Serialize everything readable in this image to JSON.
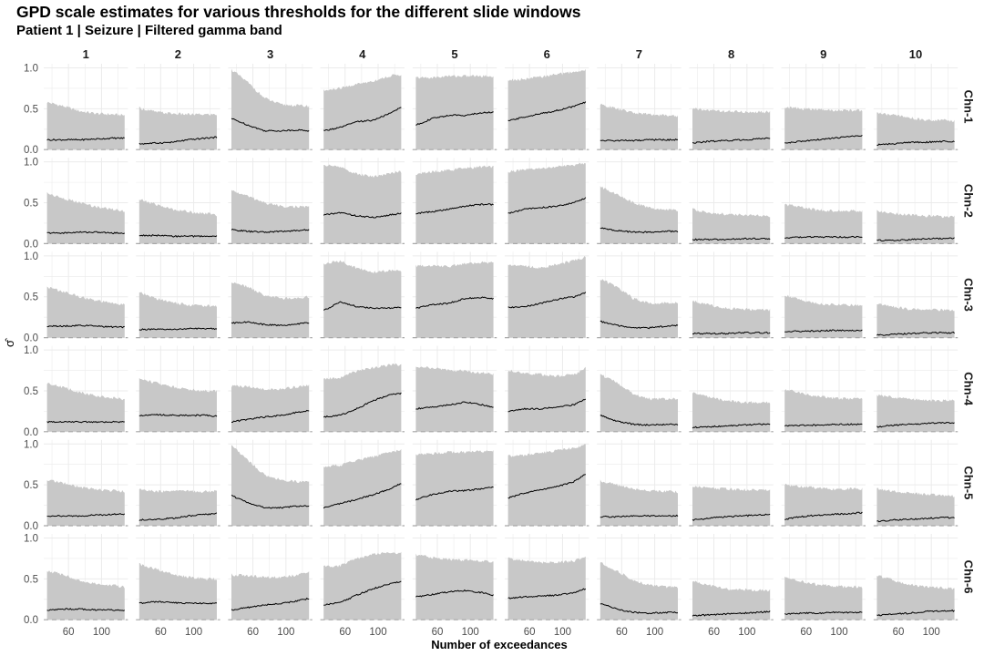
{
  "chart_data": {
    "type": "area",
    "title": "GPD scale estimates for various thresholds for the different slide windows",
    "subtitle": "Patient 1 | Seizure | Filtered gamma band",
    "xlabel": "Number of exceedances",
    "ylabel": "σ̂",
    "columns": [
      "1",
      "2",
      "3",
      "4",
      "5",
      "6",
      "7",
      "8",
      "9",
      "10"
    ],
    "rows": [
      "Chn-1",
      "Chn-2",
      "Chn-3",
      "Chn-4",
      "Chn-5",
      "Chn-6"
    ],
    "xlim": [
      30,
      132
    ],
    "ylim": [
      0,
      1.05
    ],
    "xticks": [
      60,
      100
    ],
    "yticks": [
      0.0,
      0.5,
      1.0
    ],
    "ytick_labels": [
      "0.0",
      "0.5",
      "1.0"
    ],
    "hline": 0,
    "x_points": [
      34,
      54,
      74,
      94,
      114,
      128
    ],
    "panels": [
      [
        {
          "est": [
            0.12,
            0.12,
            0.12,
            0.13,
            0.14,
            0.14
          ],
          "upper": [
            0.58,
            0.53,
            0.47,
            0.44,
            0.43,
            0.42
          ]
        },
        {
          "est": [
            0.07,
            0.08,
            0.09,
            0.12,
            0.14,
            0.15
          ],
          "upper": [
            0.51,
            0.46,
            0.44,
            0.43,
            0.43,
            0.43
          ]
        },
        {
          "est": [
            0.38,
            0.3,
            0.23,
            0.23,
            0.24,
            0.23
          ],
          "upper": [
            0.98,
            0.82,
            0.63,
            0.55,
            0.54,
            0.53
          ]
        },
        {
          "est": [
            0.23,
            0.27,
            0.34,
            0.36,
            0.44,
            0.52
          ],
          "upper": [
            0.72,
            0.75,
            0.8,
            0.84,
            0.9,
            0.92
          ]
        },
        {
          "est": [
            0.3,
            0.38,
            0.42,
            0.42,
            0.45,
            0.46
          ],
          "upper": [
            0.88,
            0.88,
            0.9,
            0.9,
            0.9,
            0.9
          ]
        },
        {
          "est": [
            0.35,
            0.4,
            0.44,
            0.48,
            0.53,
            0.58
          ],
          "upper": [
            0.85,
            0.86,
            0.89,
            0.92,
            0.95,
            0.97
          ]
        },
        {
          "est": [
            0.11,
            0.11,
            0.11,
            0.12,
            0.12,
            0.12
          ],
          "upper": [
            0.55,
            0.5,
            0.45,
            0.43,
            0.42,
            0.41
          ]
        },
        {
          "est": [
            0.08,
            0.1,
            0.11,
            0.12,
            0.13,
            0.14
          ],
          "upper": [
            0.5,
            0.48,
            0.47,
            0.46,
            0.46,
            0.46
          ]
        },
        {
          "est": [
            0.08,
            0.1,
            0.12,
            0.14,
            0.16,
            0.17
          ],
          "upper": [
            0.52,
            0.5,
            0.49,
            0.48,
            0.48,
            0.48
          ]
        },
        {
          "est": [
            0.06,
            0.07,
            0.09,
            0.09,
            0.1,
            0.1
          ],
          "upper": [
            0.45,
            0.42,
            0.39,
            0.36,
            0.36,
            0.35
          ]
        }
      ],
      [
        {
          "est": [
            0.13,
            0.13,
            0.14,
            0.14,
            0.13,
            0.13
          ],
          "upper": [
            0.62,
            0.55,
            0.5,
            0.45,
            0.42,
            0.4
          ]
        },
        {
          "est": [
            0.1,
            0.1,
            0.09,
            0.09,
            0.09,
            0.09
          ],
          "upper": [
            0.54,
            0.48,
            0.42,
            0.39,
            0.37,
            0.35
          ]
        },
        {
          "est": [
            0.17,
            0.15,
            0.14,
            0.15,
            0.16,
            0.17
          ],
          "upper": [
            0.65,
            0.58,
            0.5,
            0.46,
            0.45,
            0.45
          ]
        },
        {
          "est": [
            0.35,
            0.38,
            0.34,
            0.32,
            0.35,
            0.37
          ],
          "upper": [
            0.96,
            0.94,
            0.85,
            0.82,
            0.86,
            0.88
          ]
        },
        {
          "est": [
            0.37,
            0.39,
            0.42,
            0.46,
            0.48,
            0.48
          ],
          "upper": [
            0.85,
            0.88,
            0.9,
            0.92,
            0.94,
            0.94
          ]
        },
        {
          "est": [
            0.37,
            0.42,
            0.44,
            0.46,
            0.5,
            0.56
          ],
          "upper": [
            0.88,
            0.9,
            0.92,
            0.94,
            0.96,
            0.99
          ]
        },
        {
          "est": [
            0.19,
            0.16,
            0.14,
            0.14,
            0.15,
            0.15
          ],
          "upper": [
            0.7,
            0.6,
            0.5,
            0.44,
            0.42,
            0.4
          ]
        },
        {
          "est": [
            0.05,
            0.05,
            0.05,
            0.06,
            0.06,
            0.06
          ],
          "upper": [
            0.42,
            0.38,
            0.36,
            0.35,
            0.34,
            0.33
          ]
        },
        {
          "est": [
            0.07,
            0.08,
            0.08,
            0.08,
            0.08,
            0.08
          ],
          "upper": [
            0.48,
            0.44,
            0.41,
            0.4,
            0.4,
            0.4
          ]
        },
        {
          "est": [
            0.04,
            0.04,
            0.05,
            0.06,
            0.06,
            0.07
          ],
          "upper": [
            0.4,
            0.37,
            0.35,
            0.34,
            0.33,
            0.33
          ]
        }
      ],
      [
        {
          "est": [
            0.14,
            0.14,
            0.15,
            0.14,
            0.13,
            0.13
          ],
          "upper": [
            0.62,
            0.56,
            0.5,
            0.45,
            0.42,
            0.4
          ]
        },
        {
          "est": [
            0.1,
            0.1,
            0.1,
            0.11,
            0.11,
            0.11
          ],
          "upper": [
            0.55,
            0.48,
            0.43,
            0.4,
            0.39,
            0.38
          ]
        },
        {
          "est": [
            0.18,
            0.19,
            0.16,
            0.15,
            0.17,
            0.18
          ],
          "upper": [
            0.68,
            0.62,
            0.52,
            0.48,
            0.48,
            0.5
          ]
        },
        {
          "est": [
            0.33,
            0.44,
            0.38,
            0.36,
            0.36,
            0.37
          ],
          "upper": [
            0.9,
            0.94,
            0.85,
            0.8,
            0.82,
            0.82
          ]
        },
        {
          "est": [
            0.36,
            0.4,
            0.42,
            0.48,
            0.49,
            0.48
          ],
          "upper": [
            0.88,
            0.88,
            0.87,
            0.91,
            0.92,
            0.92
          ]
        },
        {
          "est": [
            0.37,
            0.38,
            0.42,
            0.47,
            0.5,
            0.55
          ],
          "upper": [
            0.9,
            0.88,
            0.85,
            0.9,
            0.94,
            0.99
          ]
        },
        {
          "est": [
            0.2,
            0.15,
            0.12,
            0.12,
            0.14,
            0.15
          ],
          "upper": [
            0.72,
            0.62,
            0.48,
            0.42,
            0.43,
            0.43
          ]
        },
        {
          "est": [
            0.05,
            0.05,
            0.05,
            0.06,
            0.06,
            0.06
          ],
          "upper": [
            0.45,
            0.4,
            0.36,
            0.35,
            0.34,
            0.34
          ]
        },
        {
          "est": [
            0.07,
            0.08,
            0.08,
            0.09,
            0.09,
            0.09
          ],
          "upper": [
            0.52,
            0.46,
            0.42,
            0.4,
            0.4,
            0.4
          ]
        },
        {
          "est": [
            0.03,
            0.04,
            0.05,
            0.06,
            0.06,
            0.06
          ],
          "upper": [
            0.42,
            0.38,
            0.35,
            0.34,
            0.34,
            0.33
          ]
        }
      ],
      [
        {
          "est": [
            0.12,
            0.12,
            0.12,
            0.12,
            0.12,
            0.12
          ],
          "upper": [
            0.6,
            0.54,
            0.48,
            0.44,
            0.41,
            0.4
          ]
        },
        {
          "est": [
            0.2,
            0.21,
            0.2,
            0.2,
            0.2,
            0.19
          ],
          "upper": [
            0.65,
            0.6,
            0.55,
            0.52,
            0.5,
            0.5
          ]
        },
        {
          "est": [
            0.12,
            0.15,
            0.18,
            0.2,
            0.24,
            0.26
          ],
          "upper": [
            0.56,
            0.55,
            0.52,
            0.52,
            0.55,
            0.57
          ]
        },
        {
          "est": [
            0.18,
            0.2,
            0.28,
            0.38,
            0.45,
            0.47
          ],
          "upper": [
            0.65,
            0.66,
            0.74,
            0.78,
            0.82,
            0.82
          ]
        },
        {
          "est": [
            0.28,
            0.3,
            0.33,
            0.36,
            0.33,
            0.3
          ],
          "upper": [
            0.8,
            0.78,
            0.76,
            0.74,
            0.72,
            0.7
          ]
        },
        {
          "est": [
            0.25,
            0.28,
            0.28,
            0.3,
            0.33,
            0.4
          ],
          "upper": [
            0.75,
            0.72,
            0.7,
            0.68,
            0.7,
            0.78
          ]
        },
        {
          "est": [
            0.2,
            0.13,
            0.09,
            0.08,
            0.09,
            0.09
          ],
          "upper": [
            0.7,
            0.6,
            0.46,
            0.4,
            0.4,
            0.4
          ]
        },
        {
          "est": [
            0.05,
            0.06,
            0.07,
            0.08,
            0.09,
            0.09
          ],
          "upper": [
            0.48,
            0.42,
            0.38,
            0.36,
            0.36,
            0.36
          ]
        },
        {
          "est": [
            0.07,
            0.08,
            0.08,
            0.09,
            0.09,
            0.09
          ],
          "upper": [
            0.52,
            0.47,
            0.43,
            0.41,
            0.4,
            0.4
          ]
        },
        {
          "est": [
            0.06,
            0.08,
            0.09,
            0.1,
            0.11,
            0.11
          ],
          "upper": [
            0.45,
            0.42,
            0.4,
            0.38,
            0.38,
            0.38
          ]
        }
      ],
      [
        {
          "est": [
            0.12,
            0.12,
            0.12,
            0.13,
            0.14,
            0.14
          ],
          "upper": [
            0.56,
            0.52,
            0.47,
            0.44,
            0.43,
            0.42
          ]
        },
        {
          "est": [
            0.07,
            0.08,
            0.09,
            0.12,
            0.14,
            0.15
          ],
          "upper": [
            0.45,
            0.42,
            0.42,
            0.42,
            0.42,
            0.42
          ]
        },
        {
          "est": [
            0.37,
            0.28,
            0.22,
            0.22,
            0.24,
            0.24
          ],
          "upper": [
            0.98,
            0.8,
            0.62,
            0.56,
            0.54,
            0.54
          ]
        },
        {
          "est": [
            0.22,
            0.27,
            0.32,
            0.38,
            0.45,
            0.52
          ],
          "upper": [
            0.72,
            0.74,
            0.8,
            0.84,
            0.9,
            0.92
          ]
        },
        {
          "est": [
            0.32,
            0.38,
            0.42,
            0.43,
            0.45,
            0.47
          ],
          "upper": [
            0.88,
            0.88,
            0.9,
            0.9,
            0.91,
            0.91
          ]
        },
        {
          "est": [
            0.34,
            0.4,
            0.44,
            0.48,
            0.54,
            0.63
          ],
          "upper": [
            0.85,
            0.86,
            0.89,
            0.92,
            0.95,
            0.99
          ]
        },
        {
          "est": [
            0.11,
            0.11,
            0.12,
            0.12,
            0.12,
            0.12
          ],
          "upper": [
            0.55,
            0.5,
            0.45,
            0.43,
            0.42,
            0.41
          ]
        },
        {
          "est": [
            0.07,
            0.09,
            0.11,
            0.12,
            0.13,
            0.14
          ],
          "upper": [
            0.48,
            0.46,
            0.45,
            0.44,
            0.44,
            0.44
          ]
        },
        {
          "est": [
            0.08,
            0.11,
            0.13,
            0.14,
            0.15,
            0.16
          ],
          "upper": [
            0.5,
            0.48,
            0.46,
            0.45,
            0.45,
            0.45
          ]
        },
        {
          "est": [
            0.05,
            0.07,
            0.08,
            0.09,
            0.1,
            0.1
          ],
          "upper": [
            0.45,
            0.42,
            0.4,
            0.38,
            0.37,
            0.36
          ]
        }
      ],
      [
        {
          "est": [
            0.12,
            0.13,
            0.13,
            0.12,
            0.12,
            0.11
          ],
          "upper": [
            0.6,
            0.55,
            0.48,
            0.44,
            0.42,
            0.4
          ]
        },
        {
          "est": [
            0.2,
            0.22,
            0.21,
            0.2,
            0.2,
            0.2
          ],
          "upper": [
            0.68,
            0.62,
            0.56,
            0.52,
            0.5,
            0.5
          ]
        },
        {
          "est": [
            0.12,
            0.15,
            0.18,
            0.2,
            0.23,
            0.26
          ],
          "upper": [
            0.55,
            0.54,
            0.52,
            0.52,
            0.55,
            0.58
          ]
        },
        {
          "est": [
            0.18,
            0.21,
            0.3,
            0.38,
            0.44,
            0.47
          ],
          "upper": [
            0.65,
            0.66,
            0.75,
            0.8,
            0.82,
            0.82
          ]
        },
        {
          "est": [
            0.28,
            0.31,
            0.34,
            0.36,
            0.33,
            0.3
          ],
          "upper": [
            0.8,
            0.76,
            0.74,
            0.73,
            0.72,
            0.7
          ]
        },
        {
          "est": [
            0.26,
            0.28,
            0.29,
            0.3,
            0.33,
            0.38
          ],
          "upper": [
            0.75,
            0.72,
            0.7,
            0.7,
            0.72,
            0.78
          ]
        },
        {
          "est": [
            0.2,
            0.13,
            0.09,
            0.08,
            0.09,
            0.09
          ],
          "upper": [
            0.7,
            0.6,
            0.48,
            0.42,
            0.4,
            0.4
          ]
        },
        {
          "est": [
            0.05,
            0.06,
            0.07,
            0.08,
            0.09,
            0.1
          ],
          "upper": [
            0.48,
            0.42,
            0.38,
            0.37,
            0.36,
            0.36
          ]
        },
        {
          "est": [
            0.07,
            0.08,
            0.08,
            0.09,
            0.09,
            0.09
          ],
          "upper": [
            0.52,
            0.47,
            0.43,
            0.41,
            0.4,
            0.4
          ]
        },
        {
          "est": [
            0.05,
            0.07,
            0.08,
            0.1,
            0.11,
            0.11
          ],
          "upper": [
            0.55,
            0.48,
            0.43,
            0.4,
            0.39,
            0.38
          ]
        }
      ]
    ],
    "colors": {
      "band": "#c8c8c8",
      "line": "#000000",
      "grid": "#ebebeb",
      "ref": "#a8a8a8"
    }
  }
}
